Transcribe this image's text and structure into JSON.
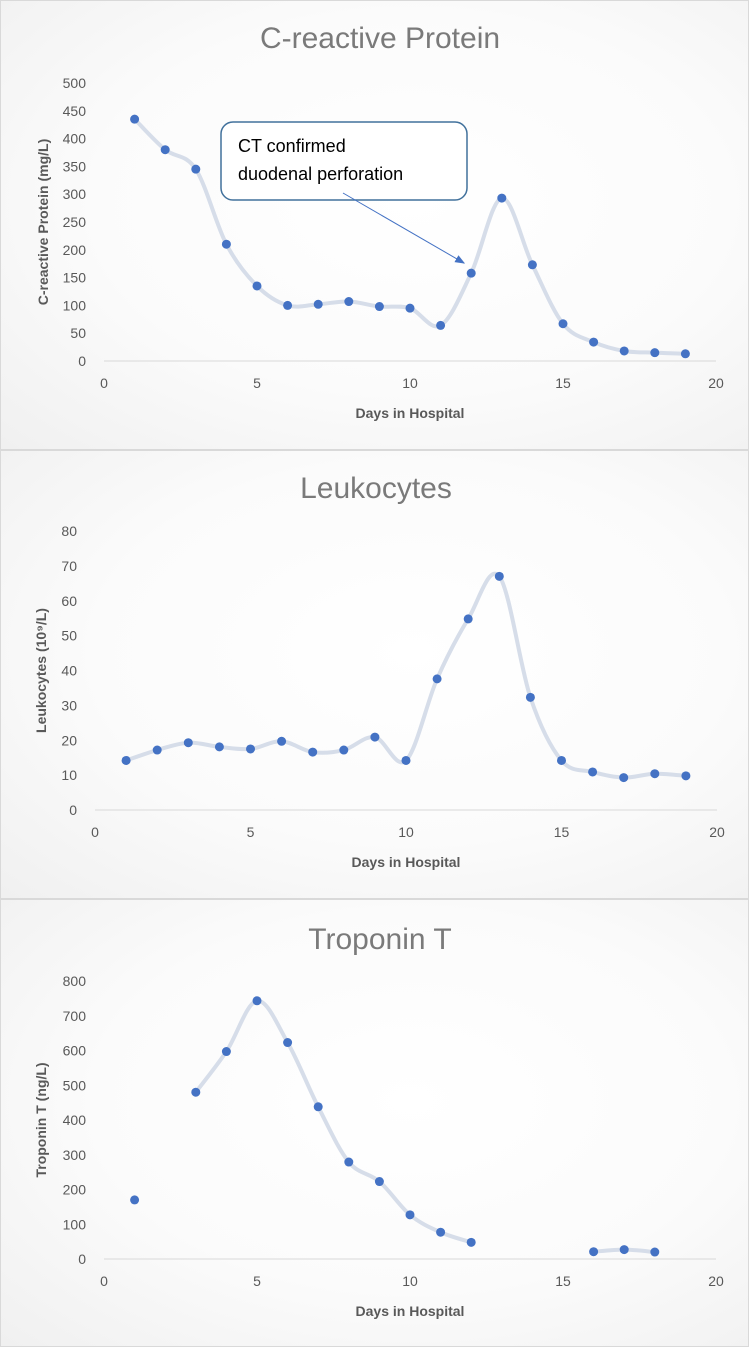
{
  "colors": {
    "marker": "#4472c4",
    "smooth_line": "#d6dde9",
    "axis": "#d9d9d9",
    "annotation_border": "#41719c",
    "arrow": "#4472c4"
  },
  "chart_data": [
    {
      "type": "scatter",
      "title": "C-reactive Protein",
      "xlabel": "Days in Hospital",
      "ylabel": "C-reactive Protein (mg/L)",
      "xlim": [
        0,
        20
      ],
      "ylim": [
        0,
        500
      ],
      "xticks": [
        "0",
        "5",
        "10",
        "15",
        "20"
      ],
      "yticks": [
        "0",
        "50",
        "100",
        "150",
        "200",
        "250",
        "300",
        "350",
        "400",
        "450",
        "500"
      ],
      "grid": false,
      "smoothed_line": true,
      "x": [
        1,
        2,
        3,
        4,
        5,
        6,
        7,
        8,
        9,
        10,
        11,
        12,
        13,
        14,
        15,
        16,
        17,
        18,
        19
      ],
      "y": [
        435,
        380,
        345,
        210,
        135,
        100,
        102,
        107,
        98,
        95,
        64,
        158,
        293,
        173,
        67,
        34,
        18,
        15,
        13
      ],
      "annotation": {
        "text_lines": [
          "CT confirmed",
          "duodenal perforation"
        ],
        "points_to_x": 12
      }
    },
    {
      "type": "scatter",
      "title": "Leukocytes",
      "xlabel": "Days in Hospital",
      "ylabel": "Leukocytes (10⁹/L)",
      "xlim": [
        0,
        20
      ],
      "ylim": [
        0,
        80
      ],
      "xticks": [
        "0",
        "5",
        "10",
        "15",
        "20"
      ],
      "yticks": [
        "0",
        "10",
        "20",
        "30",
        "40",
        "50",
        "60",
        "70",
        "80"
      ],
      "grid": false,
      "smoothed_line": true,
      "x": [
        1,
        2,
        3,
        4,
        5,
        6,
        7,
        8,
        9,
        10,
        11,
        12,
        13,
        14,
        15,
        16,
        17,
        18,
        19
      ],
      "y": [
        14.2,
        17.2,
        19.3,
        18.1,
        17.5,
        19.7,
        16.6,
        17.2,
        20.9,
        14.2,
        37.6,
        54.8,
        67,
        32.3,
        14.2,
        10.9,
        9.3,
        10.4,
        9.8
      ]
    },
    {
      "type": "scatter",
      "title": "Troponin T",
      "xlabel": "Days in Hospital",
      "ylabel": "Troponin T (ng/L)",
      "xlim": [
        0,
        20
      ],
      "ylim": [
        0,
        800
      ],
      "xticks": [
        "0",
        "5",
        "10",
        "15",
        "20"
      ],
      "yticks": [
        "0",
        "100",
        "200",
        "300",
        "400",
        "500",
        "600",
        "700",
        "800"
      ],
      "grid": false,
      "smoothed_line": true,
      "x": [
        1,
        3,
        4,
        5,
        6,
        7,
        8,
        9,
        10,
        11,
        12,
        16,
        17,
        18
      ],
      "y": [
        170,
        480,
        597,
        743,
        623,
        438,
        279,
        223,
        127,
        77,
        48,
        21,
        27,
        20
      ]
    }
  ]
}
